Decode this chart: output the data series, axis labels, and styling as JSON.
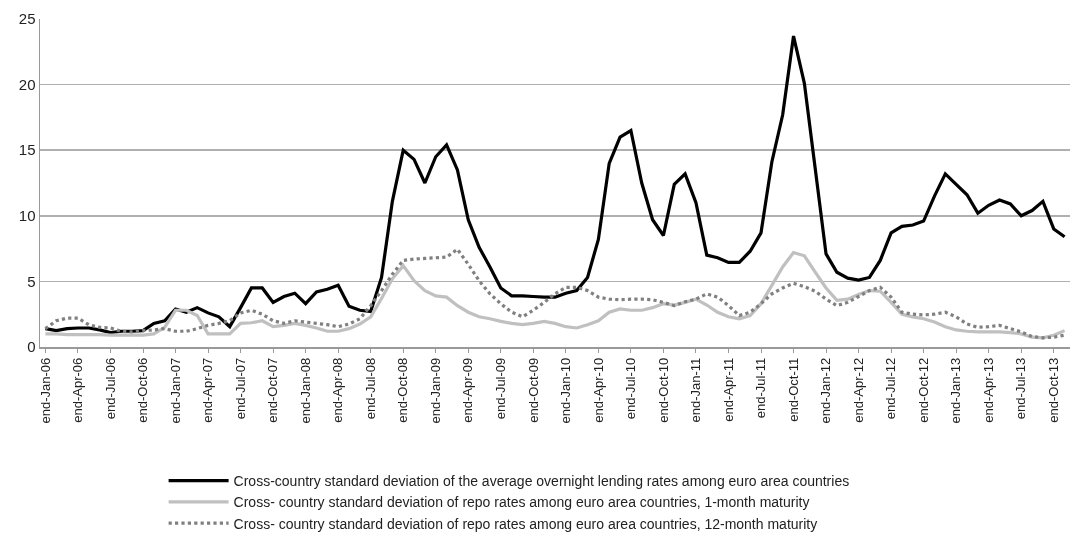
{
  "chart_data": {
    "type": "line",
    "categories": [
      "end-Jan-06",
      null,
      null,
      "end-Apr-06",
      null,
      null,
      "end-Jul-06",
      null,
      null,
      "end-Oct-06",
      null,
      null,
      "end-Jan-07",
      null,
      null,
      "end-Apr-07",
      null,
      null,
      "end-Jul-07",
      null,
      null,
      "end-Oct-07",
      null,
      null,
      "end-Jan-08",
      null,
      null,
      "end-Apr-08",
      null,
      null,
      "end-Jul-08",
      null,
      null,
      "end-Oct-08",
      null,
      null,
      "end-Jan-09",
      null,
      null,
      "end-Apr-09",
      null,
      null,
      "end-Jul-09",
      null,
      null,
      "end-Oct-09",
      null,
      null,
      "end-Jan-10",
      null,
      null,
      "end-Apr-10",
      null,
      null,
      "end-Jul-10",
      null,
      null,
      "end-Oct-10",
      null,
      null,
      "end-Jan-11",
      null,
      null,
      "end-Apr-11",
      null,
      null,
      "end-Jul-11",
      null,
      null,
      "end-Oct-11",
      null,
      null,
      "end-Jan-12",
      null,
      null,
      "end-Apr-12",
      null,
      null,
      "end-Jul-12",
      null,
      null,
      "end-Oct-12",
      null,
      null,
      "end-Jan-13",
      null,
      null,
      "end-Apr-13",
      null,
      null,
      "end-Jul-13",
      null,
      null,
      "end-Oct-13",
      null
    ],
    "series": [
      {
        "name": "Cross-country standard deviation of the average overnight lending rates among euro area countries",
        "color": "#000000",
        "line_style": "solid",
        "values": [
          1.4,
          1.25,
          1.4,
          1.45,
          1.45,
          1.3,
          1.1,
          1.2,
          1.2,
          1.25,
          1.8,
          2.0,
          2.9,
          2.65,
          3.0,
          2.6,
          2.3,
          1.55,
          3.0,
          4.5,
          4.5,
          3.4,
          3.85,
          4.1,
          3.3,
          4.2,
          4.4,
          4.7,
          3.1,
          2.8,
          2.7,
          5.3,
          11.1,
          15.0,
          14.3,
          12.5,
          14.5,
          15.4,
          13.5,
          9.7,
          7.6,
          6.1,
          4.5,
          3.9,
          3.9,
          3.85,
          3.8,
          3.8,
          4.1,
          4.3,
          5.3,
          8.2,
          14.0,
          16.0,
          16.5,
          12.5,
          9.7,
          8.5,
          12.4,
          13.2,
          11.0,
          7.0,
          6.8,
          6.45,
          6.45,
          7.3,
          8.7,
          14.1,
          17.7,
          23.7,
          20.1,
          13.6,
          7.1,
          5.7,
          5.25,
          5.1,
          5.3,
          6.6,
          8.7,
          9.2,
          9.3,
          9.6,
          11.5,
          13.2,
          12.4,
          11.6,
          10.2,
          10.8,
          11.2,
          10.9,
          10.0,
          10.4,
          11.1,
          9.0,
          8.4
        ]
      },
      {
        "name": "Cross- country standard deviation of repo rates among euro area countries, 1-month maturity",
        "color": "#c0c0c0",
        "line_style": "solid",
        "values": [
          1.0,
          1.0,
          0.95,
          0.95,
          0.95,
          0.95,
          0.9,
          0.9,
          0.9,
          0.9,
          1.0,
          1.5,
          2.8,
          2.8,
          2.4,
          1.0,
          1.0,
          1.0,
          1.8,
          1.85,
          2.0,
          1.55,
          1.65,
          1.8,
          1.65,
          1.45,
          1.2,
          1.2,
          1.4,
          1.75,
          2.3,
          3.7,
          5.2,
          6.2,
          5.05,
          4.3,
          3.9,
          3.8,
          3.15,
          2.65,
          2.3,
          2.15,
          1.95,
          1.8,
          1.7,
          1.8,
          1.95,
          1.8,
          1.55,
          1.45,
          1.7,
          2.0,
          2.65,
          2.9,
          2.8,
          2.8,
          3.0,
          3.3,
          3.2,
          3.4,
          3.65,
          3.2,
          2.65,
          2.3,
          2.15,
          2.4,
          3.3,
          4.7,
          6.1,
          7.2,
          6.95,
          5.7,
          4.5,
          3.55,
          3.65,
          4.0,
          4.3,
          4.25,
          3.4,
          2.5,
          2.3,
          2.15,
          1.9,
          1.55,
          1.3,
          1.2,
          1.15,
          1.15,
          1.15,
          1.1,
          1.0,
          0.75,
          0.7,
          0.9,
          1.25
        ]
      },
      {
        "name": "Cross- country standard deviation of repo rates among euro area countries, 12-month maturity",
        "color": "#808080",
        "line_style": "dotted",
        "values": [
          1.4,
          2.0,
          2.2,
          2.2,
          1.7,
          1.5,
          1.45,
          1.2,
          1.15,
          1.25,
          1.3,
          1.4,
          1.2,
          1.2,
          1.4,
          1.65,
          1.8,
          2.0,
          2.6,
          2.8,
          2.5,
          2.0,
          1.8,
          2.0,
          1.9,
          1.8,
          1.7,
          1.55,
          1.75,
          2.15,
          3.15,
          4.3,
          5.55,
          6.6,
          6.7,
          6.75,
          6.8,
          6.85,
          7.45,
          6.3,
          5.05,
          4.05,
          3.3,
          2.65,
          2.3,
          2.8,
          3.4,
          4.05,
          4.55,
          4.55,
          4.3,
          3.8,
          3.65,
          3.6,
          3.65,
          3.65,
          3.6,
          3.4,
          3.15,
          3.45,
          3.65,
          4.05,
          3.8,
          3.15,
          2.4,
          2.65,
          3.3,
          4.05,
          4.5,
          4.85,
          4.6,
          4.25,
          3.65,
          3.15,
          3.4,
          3.85,
          4.3,
          4.55,
          3.8,
          2.65,
          2.5,
          2.45,
          2.5,
          2.65,
          2.3,
          1.75,
          1.5,
          1.55,
          1.65,
          1.4,
          1.15,
          0.8,
          0.7,
          0.75,
          0.9
        ]
      }
    ],
    "ylim": [
      0,
      25
    ],
    "yticks": [
      0,
      5,
      10,
      15,
      20,
      25
    ],
    "grid": "y",
    "legend": "bottom",
    "marker": "none"
  }
}
